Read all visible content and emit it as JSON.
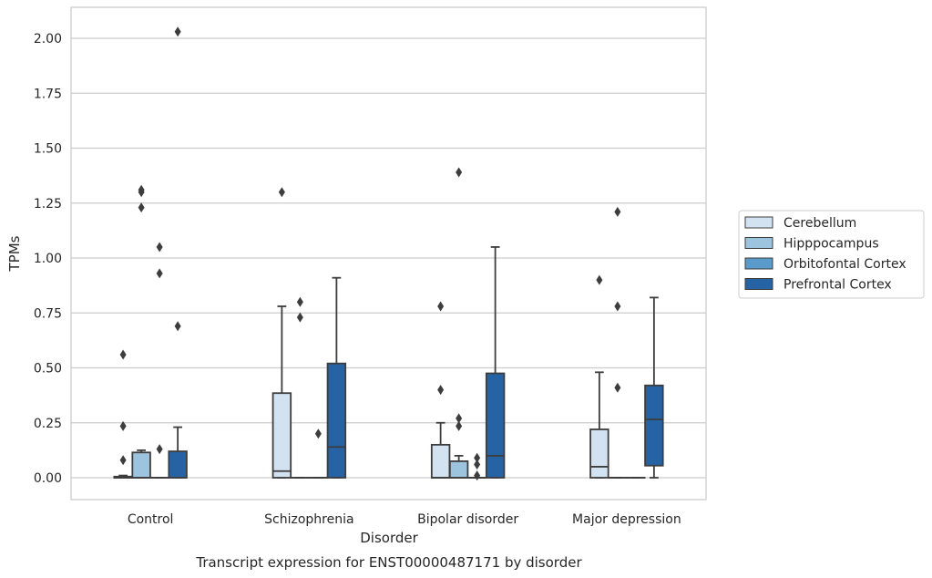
{
  "chart_data": {
    "type": "box",
    "title": "Transcript expression for ENST00000487171 by disorder",
    "xlabel": "Disorder",
    "ylabel": "TPMs",
    "ylim": [
      -0.1,
      2.13
    ],
    "yticks": [
      "0.00",
      "0.25",
      "0.50",
      "0.75",
      "1.00",
      "1.25",
      "1.50",
      "1.75",
      "2.00"
    ],
    "grid": "horizontal",
    "legend_position": "right",
    "categories": [
      "Control",
      "Schizophrenia",
      "Bipolar disorder",
      "Major depression"
    ],
    "series": [
      {
        "name": "Cerebellum",
        "color": "#d3e2f1",
        "boxes": [
          {
            "q1": 0.0,
            "median": 0.0,
            "q3": 0.005,
            "whisker_low": 0.0,
            "whisker_high": 0.01,
            "outliers": [
              0.08,
              0.235,
              0.56
            ]
          },
          {
            "q1": 0.0,
            "median": 0.03,
            "q3": 0.385,
            "whisker_low": 0.0,
            "whisker_high": 0.78,
            "outliers": [
              1.3
            ]
          },
          {
            "q1": 0.0,
            "median": 0.0,
            "q3": 0.15,
            "whisker_low": 0.0,
            "whisker_high": 0.25,
            "outliers": [
              0.4,
              0.78
            ]
          },
          {
            "q1": 0.0,
            "median": 0.05,
            "q3": 0.22,
            "whisker_low": 0.0,
            "whisker_high": 0.48,
            "outliers": [
              0.9
            ]
          }
        ]
      },
      {
        "name": "Hipppocampus",
        "color": "#9dc4df",
        "boxes": [
          {
            "q1": 0.0,
            "median": 0.0,
            "q3": 0.115,
            "whisker_low": 0.0,
            "whisker_high": 0.125,
            "outliers": [
              1.23,
              1.3,
              1.31
            ]
          },
          {
            "q1": 0.0,
            "median": 0.0,
            "q3": 0.0,
            "whisker_low": 0.0,
            "whisker_high": 0.0,
            "outliers": [
              0.73,
              0.8
            ]
          },
          {
            "q1": 0.0,
            "median": 0.0,
            "q3": 0.075,
            "whisker_low": 0.0,
            "whisker_high": 0.1,
            "outliers": [
              0.235,
              0.27,
              1.39
            ]
          },
          {
            "q1": 0.0,
            "median": 0.0,
            "q3": 0.0,
            "whisker_low": 0.0,
            "whisker_high": 0.0,
            "outliers": [
              0.41,
              0.78,
              1.21
            ]
          }
        ]
      },
      {
        "name": "Orbitofontal Cortex",
        "color": "#5a9bcb",
        "boxes": [
          {
            "q1": 0.0,
            "median": 0.0,
            "q3": 0.0,
            "whisker_low": 0.0,
            "whisker_high": 0.0,
            "outliers": [
              0.13,
              0.93,
              1.05
            ]
          },
          {
            "q1": 0.0,
            "median": 0.0,
            "q3": 0.0,
            "whisker_low": 0.0,
            "whisker_high": 0.0,
            "outliers": [
              0.2
            ]
          },
          {
            "q1": 0.0,
            "median": 0.0,
            "q3": 0.0,
            "whisker_low": 0.0,
            "whisker_high": 0.0,
            "outliers": [
              0.01,
              0.06,
              0.09
            ]
          },
          {
            "q1": 0.0,
            "median": 0.0,
            "q3": 0.0,
            "whisker_low": 0.0,
            "whisker_high": 0.0,
            "outliers": []
          }
        ]
      },
      {
        "name": "Prefrontal Cortex",
        "color": "#2563a5",
        "boxes": [
          {
            "q1": 0.0,
            "median": 0.0,
            "q3": 0.12,
            "whisker_low": 0.0,
            "whisker_high": 0.23,
            "outliers": [
              0.69,
              2.03
            ]
          },
          {
            "q1": 0.0,
            "median": 0.14,
            "q3": 0.52,
            "whisker_low": 0.0,
            "whisker_high": 0.91,
            "outliers": []
          },
          {
            "q1": 0.0,
            "median": 0.1,
            "q3": 0.475,
            "whisker_low": 0.0,
            "whisker_high": 1.05,
            "outliers": []
          },
          {
            "q1": 0.055,
            "median": 0.265,
            "q3": 0.42,
            "whisker_low": 0.0,
            "whisker_high": 0.82,
            "outliers": []
          }
        ]
      }
    ]
  }
}
